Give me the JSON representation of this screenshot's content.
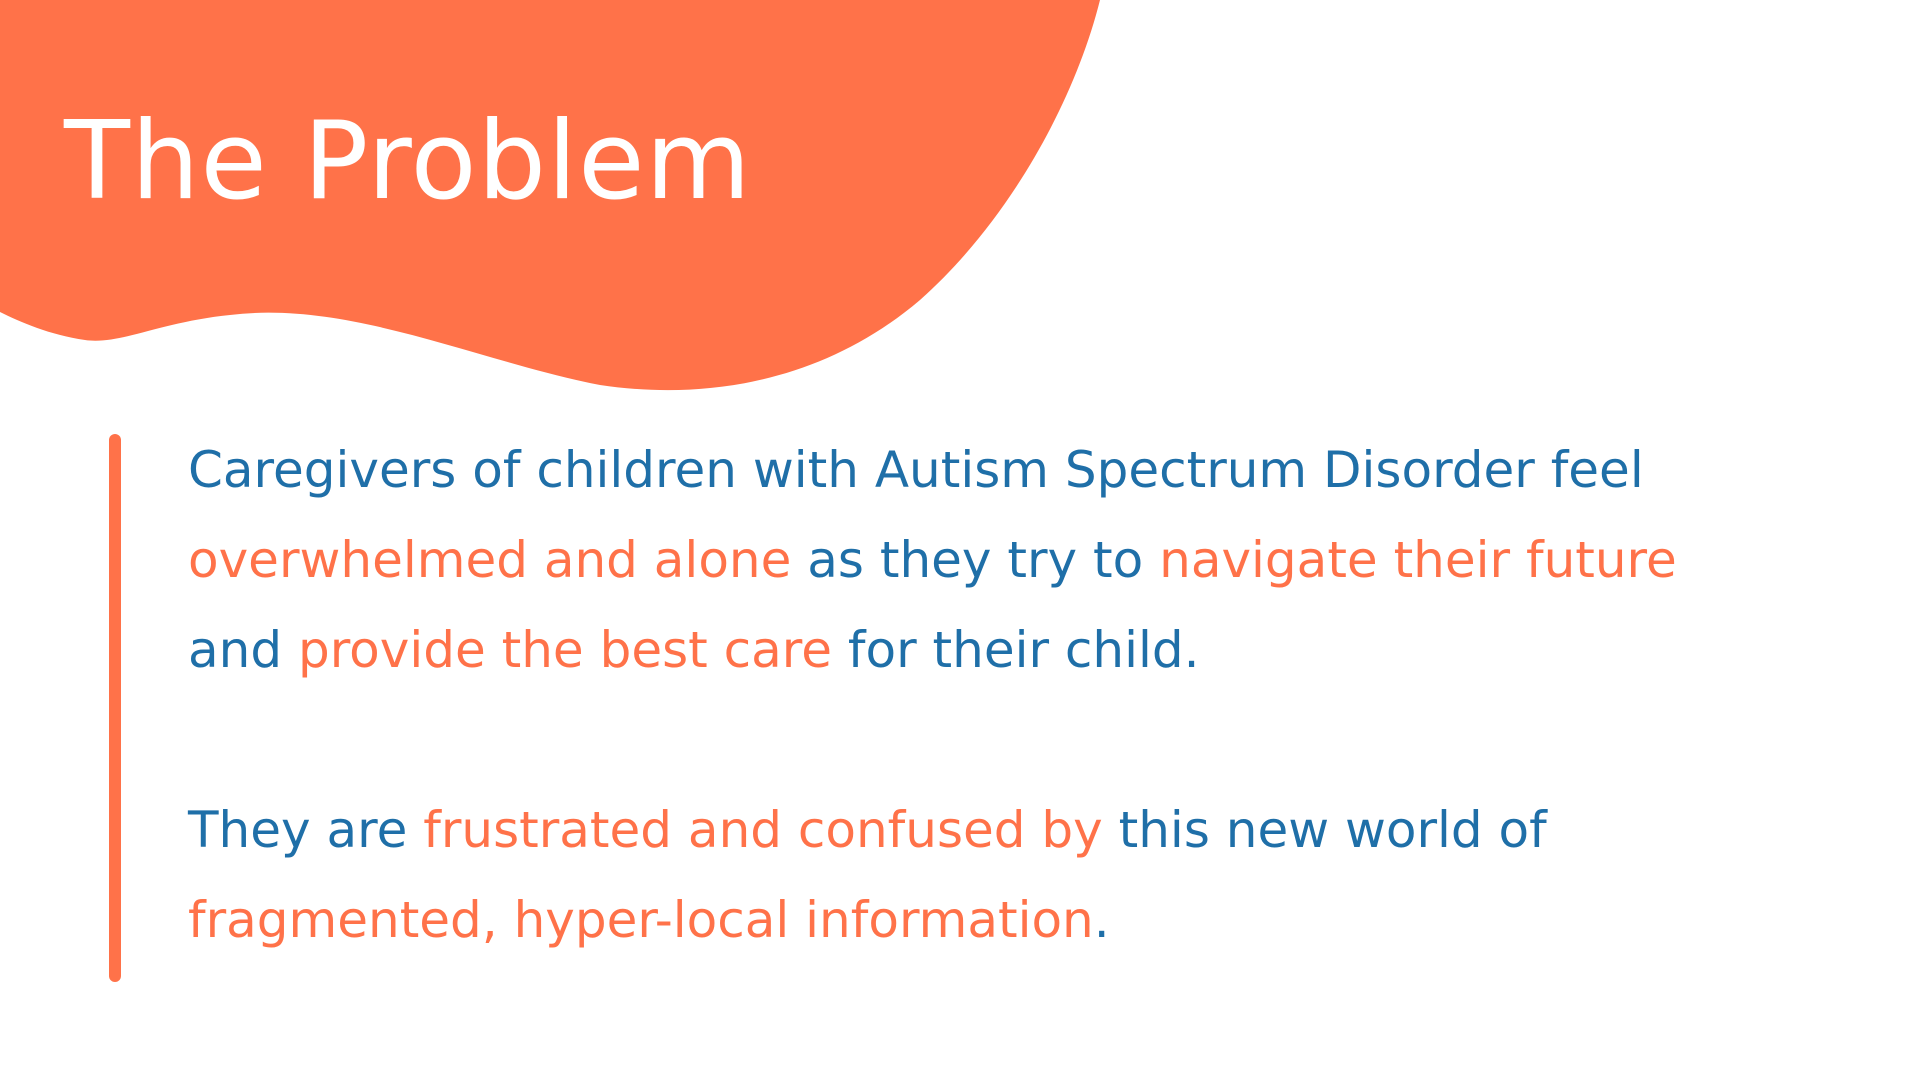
{
  "colors": {
    "orange": "#FF7249",
    "blue": "#1F6FA8",
    "white": "#FFFFFF"
  },
  "title": "The Problem",
  "paragraphs": [
    {
      "lines": [
        [
          {
            "text": "Caregivers of children with Autism Spectrum Disorder feel",
            "color": "blue"
          }
        ],
        [
          {
            "text": "overwhelmed and alone",
            "color": "orange"
          },
          {
            "text": " as they try to ",
            "color": "blue"
          },
          {
            "text": "navigate their future",
            "color": "orange"
          }
        ],
        [
          {
            "text": "and ",
            "color": "blue"
          },
          {
            "text": "provide the best care",
            "color": "orange"
          },
          {
            "text": " for their child.",
            "color": "blue"
          }
        ]
      ]
    },
    {
      "lines": [
        [
          {
            "text": "They are ",
            "color": "blue"
          },
          {
            "text": "frustrated and confused by",
            "color": "orange"
          },
          {
            "text": " this new world of",
            "color": "blue"
          }
        ],
        [
          {
            "text": "fragmented, hyper-local information",
            "color": "orange"
          },
          {
            "text": ".",
            "color": "blue"
          }
        ]
      ]
    }
  ]
}
